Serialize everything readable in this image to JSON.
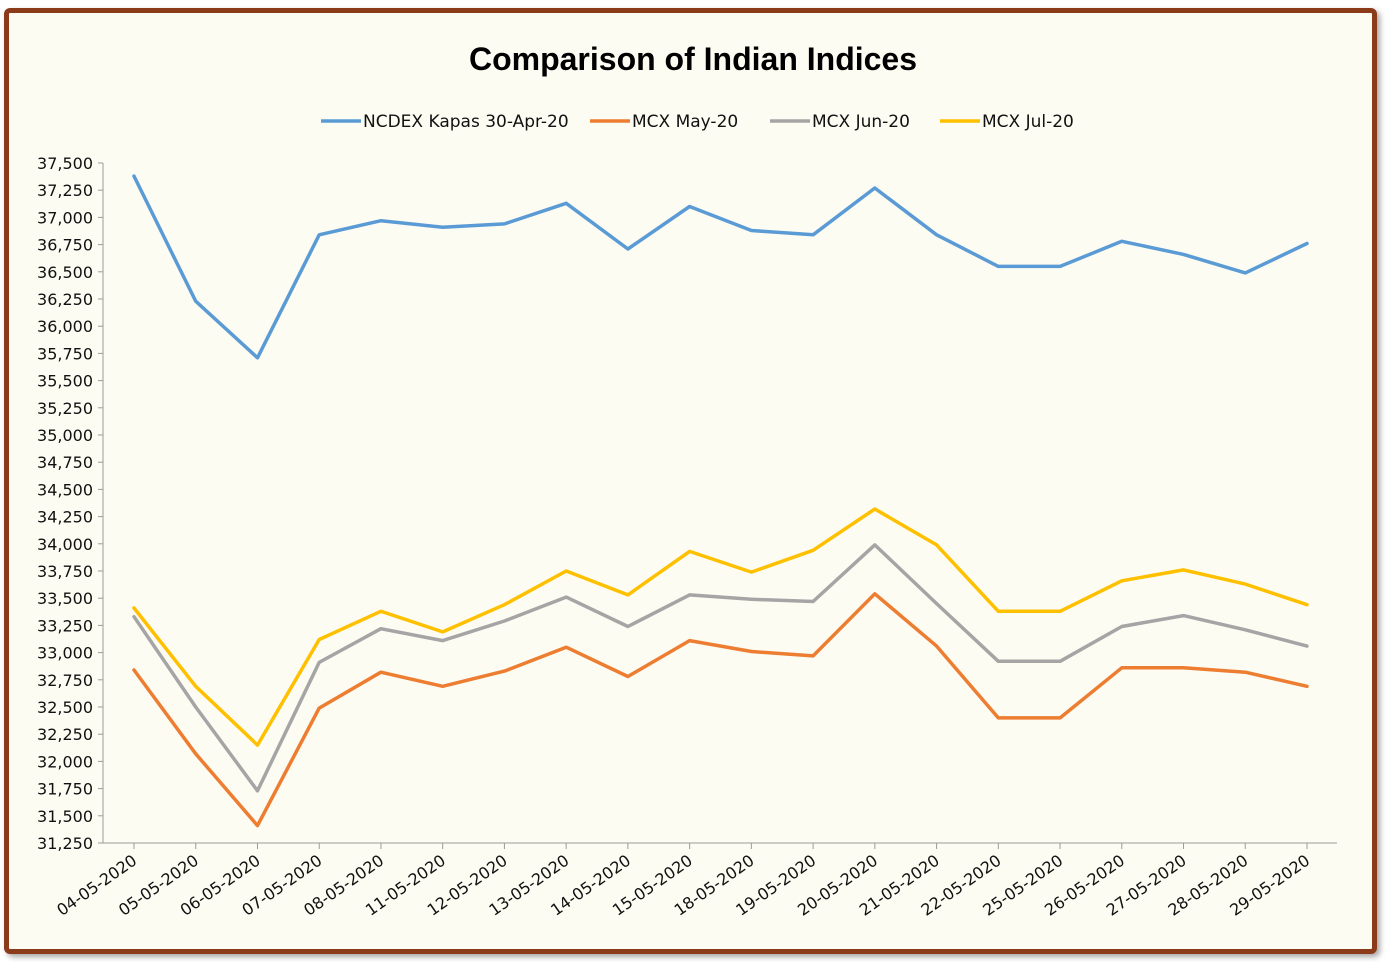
{
  "chart_data": {
    "type": "line",
    "title": "Comparison of Indian Indices",
    "xlabel": "",
    "ylabel": "",
    "ylim": [
      31250,
      37500
    ],
    "ytick_step": 250,
    "legend_position": "top",
    "grid": false,
    "categories": [
      "04-05-2020",
      "05-05-2020",
      "06-05-2020",
      "07-05-2020",
      "08-05-2020",
      "11-05-2020",
      "12-05-2020",
      "13-05-2020",
      "14-05-2020",
      "15-05-2020",
      "18-05-2020",
      "19-05-2020",
      "20-05-2020",
      "21-05-2020",
      "22-05-2020",
      "25-05-2020",
      "26-05-2020",
      "27-05-2020",
      "28-05-2020",
      "29-05-2020"
    ],
    "series": [
      {
        "name": "NCDEX Kapas 30-Apr-20",
        "color": "#5b9bd5",
        "values": [
          37380,
          36230,
          35710,
          36840,
          36970,
          36910,
          36940,
          37130,
          36710,
          37100,
          36880,
          36840,
          37270,
          36840,
          36550,
          36550,
          36780,
          36660,
          36490,
          36760
        ]
      },
      {
        "name": "MCX May-20",
        "color": "#ed7d31",
        "values": [
          32840,
          32070,
          31410,
          32490,
          32820,
          32690,
          32830,
          33050,
          32780,
          33110,
          33010,
          32970,
          33540,
          33060,
          32400,
          32400,
          32860,
          32860,
          32820,
          32690
        ]
      },
      {
        "name": "MCX Jun-20",
        "color": "#a5a5a5",
        "values": [
          33330,
          32500,
          31730,
          32910,
          33220,
          33110,
          33290,
          33510,
          33240,
          33530,
          33490,
          33470,
          33990,
          33450,
          32920,
          32920,
          33240,
          33340,
          33210,
          33060
        ]
      },
      {
        "name": "MCX Jul-20",
        "color": "#ffc000",
        "values": [
          33410,
          32690,
          32150,
          33120,
          33380,
          33190,
          33440,
          33750,
          33530,
          33930,
          33740,
          33940,
          34320,
          33990,
          33380,
          33380,
          33660,
          33760,
          33630,
          33440
        ]
      }
    ]
  }
}
